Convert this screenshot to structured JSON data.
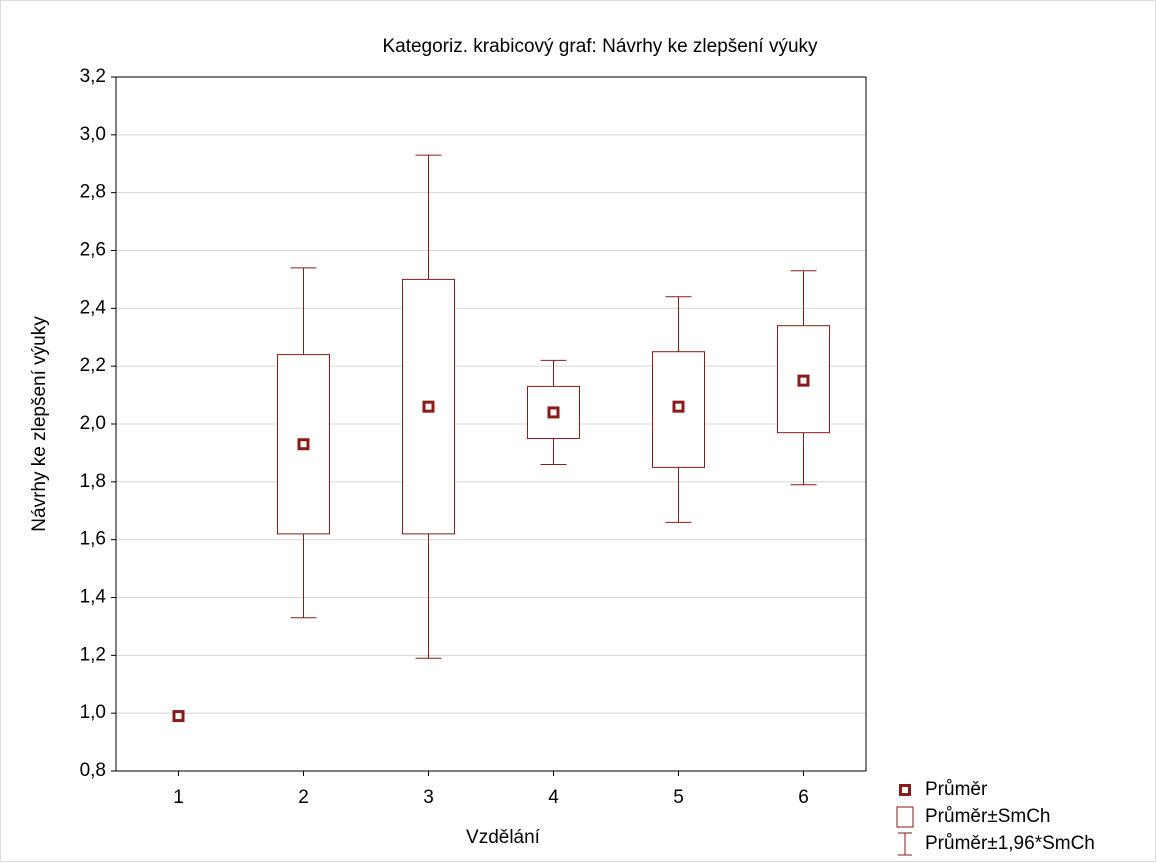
{
  "chart_data": {
    "type": "box",
    "title": "Kategoriz. krabicový graf: Návrhy ke zlepšení výuky",
    "x_label": "Vzdělání",
    "y_label": "Návrhy ke zlepšení výuky",
    "categories": [
      "1",
      "2",
      "3",
      "4",
      "5",
      "6"
    ],
    "color": "#8b1a1a",
    "series": [
      {
        "name": "Průměr",
        "values": [
          0.99,
          1.93,
          2.06,
          2.04,
          2.06,
          2.15
        ]
      },
      {
        "name": "Průměr±SmCh",
        "low": [
          null,
          1.62,
          1.62,
          1.95,
          1.85,
          1.97
        ],
        "high": [
          null,
          2.24,
          2.5,
          2.13,
          2.25,
          2.34
        ]
      },
      {
        "name": "Průměr±1,96*SmCh",
        "low": [
          null,
          1.33,
          1.19,
          1.86,
          1.66,
          1.79
        ],
        "high": [
          null,
          2.54,
          2.93,
          2.22,
          2.44,
          2.53
        ]
      }
    ],
    "ylim": [
      0.8,
      3.2
    ],
    "yticks": [
      {
        "value": 0.8,
        "label": "0,8"
      },
      {
        "value": 1.0,
        "label": "1,0"
      },
      {
        "value": 1.2,
        "label": "1,2"
      },
      {
        "value": 1.4,
        "label": "1,4"
      },
      {
        "value": 1.6,
        "label": "1,6"
      },
      {
        "value": 1.8,
        "label": "1,8"
      },
      {
        "value": 2.0,
        "label": "2,0"
      },
      {
        "value": 2.2,
        "label": "2,2"
      },
      {
        "value": 2.4,
        "label": "2,4"
      },
      {
        "value": 2.6,
        "label": "2,6"
      },
      {
        "value": 2.8,
        "label": "2,8"
      },
      {
        "value": 3.0,
        "label": "3,0"
      },
      {
        "value": 3.2,
        "label": "3,2"
      }
    ],
    "grid": true
  }
}
